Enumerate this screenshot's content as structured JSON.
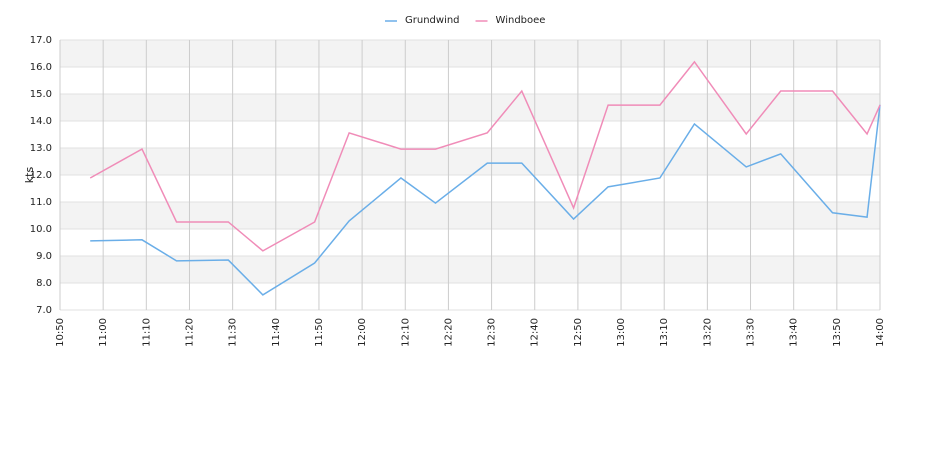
{
  "chart_data": {
    "type": "line",
    "y_label": "kts",
    "x": [
      "10:57",
      "11:09",
      "11:17",
      "11:29",
      "11:37",
      "11:49",
      "11:57",
      "12:09",
      "12:17",
      "12:29",
      "12:37",
      "12:49",
      "12:57",
      "13:09",
      "13:17",
      "13:29",
      "13:37",
      "13:49",
      "13:57",
      "14:00"
    ],
    "series": [
      {
        "name": "Grundwind",
        "color": "#6aaee8",
        "values": [
          9.56,
          9.6,
          8.82,
          8.85,
          7.56,
          8.74,
          10.3,
          11.89,
          10.96,
          12.44,
          12.44,
          10.37,
          11.56,
          11.89,
          13.89,
          12.3,
          12.78,
          10.6,
          10.44,
          14.6
        ]
      },
      {
        "name": "Windboee",
        "color": "#f08cb8",
        "values": [
          11.89,
          12.96,
          10.26,
          10.26,
          9.19,
          10.26,
          13.56,
          12.96,
          12.96,
          13.56,
          15.11,
          10.78,
          14.59,
          14.59,
          16.19,
          13.52,
          15.11,
          15.11,
          13.52,
          14.59
        ]
      }
    ],
    "xlim": [
      "10:50",
      "14:00"
    ],
    "xticks": [
      "10:50",
      "11:00",
      "11:10",
      "11:20",
      "11:30",
      "11:40",
      "11:50",
      "12:00",
      "12:10",
      "12:20",
      "12:30",
      "12:40",
      "12:50",
      "13:00",
      "13:10",
      "13:20",
      "13:30",
      "13:40",
      "13:50",
      "14:00"
    ],
    "ylim": [
      7,
      17
    ],
    "yticks": [
      {
        "value": 7,
        "label": "7.0"
      },
      {
        "value": 8,
        "label": "8.0"
      },
      {
        "value": 9,
        "label": "9.0"
      },
      {
        "value": 10,
        "label": "10.0"
      },
      {
        "value": 11,
        "label": "11.0"
      },
      {
        "value": 12,
        "label": "12.0"
      },
      {
        "value": 13,
        "label": "13.0"
      },
      {
        "value": 14,
        "label": "14.0"
      },
      {
        "value": 15,
        "label": "15.0"
      },
      {
        "value": 16,
        "label": "16.0"
      },
      {
        "value": 17,
        "label": "17.0"
      }
    ],
    "grid": true,
    "legend": "top"
  }
}
